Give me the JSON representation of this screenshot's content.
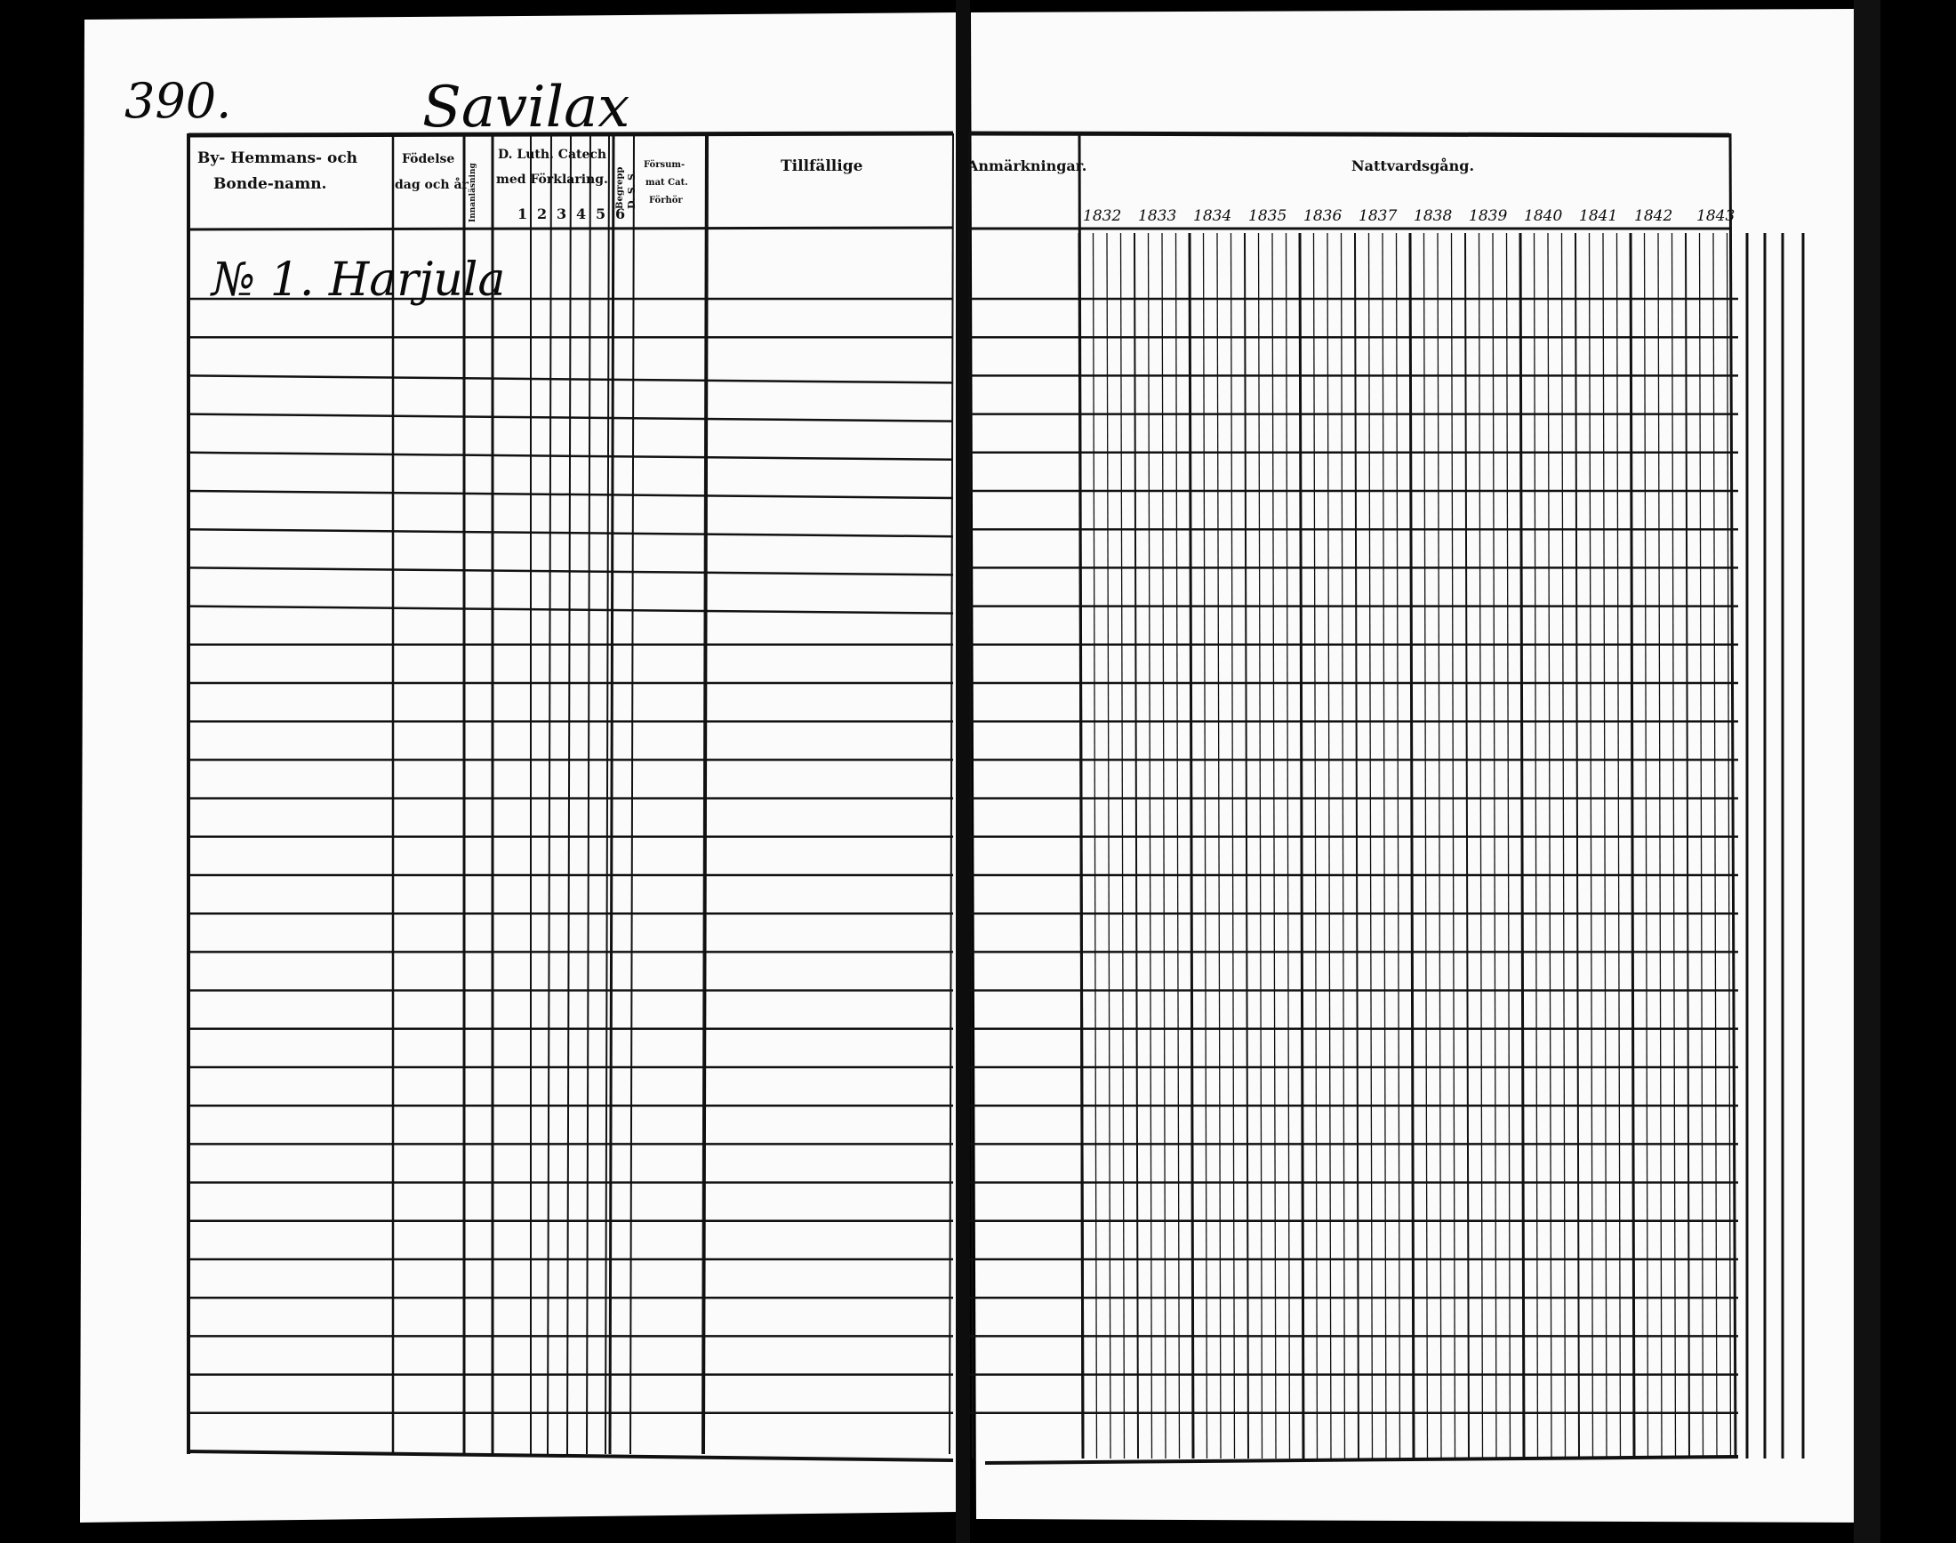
{
  "page_number": "390.",
  "parish_title": "Savilax",
  "left_page": {
    "headers": {
      "name_line1": "By- Hemmans- och",
      "name_line2": "Bonde-namn.",
      "birth_line1": "Födelse",
      "birth_line2": "dag och år",
      "reading": "Innanläsning",
      "catech_line1": "D. Luth. Catech",
      "catech_line2": "med Förklaring.",
      "catech_digits": [
        "1",
        "2",
        "3",
        "4",
        "5",
        "6"
      ],
      "begrepp": "Begrepp",
      "dss": "D. S. S.",
      "missed_line1": "Försum-",
      "missed_line2": "mat Cat.",
      "missed_line3": "Förhör",
      "occasional": "Tillfällige"
    },
    "entries": [
      {
        "text": "№ 1. Harjula"
      }
    ]
  },
  "right_page": {
    "headers": {
      "remarks": "Anmärkningar.",
      "communion": "Nattvardsgång."
    },
    "years": [
      "1832",
      "1833",
      "1834",
      "1835",
      "1836",
      "1837",
      "1838",
      "1839",
      "1840",
      "1841",
      "1842",
      "1843"
    ]
  }
}
